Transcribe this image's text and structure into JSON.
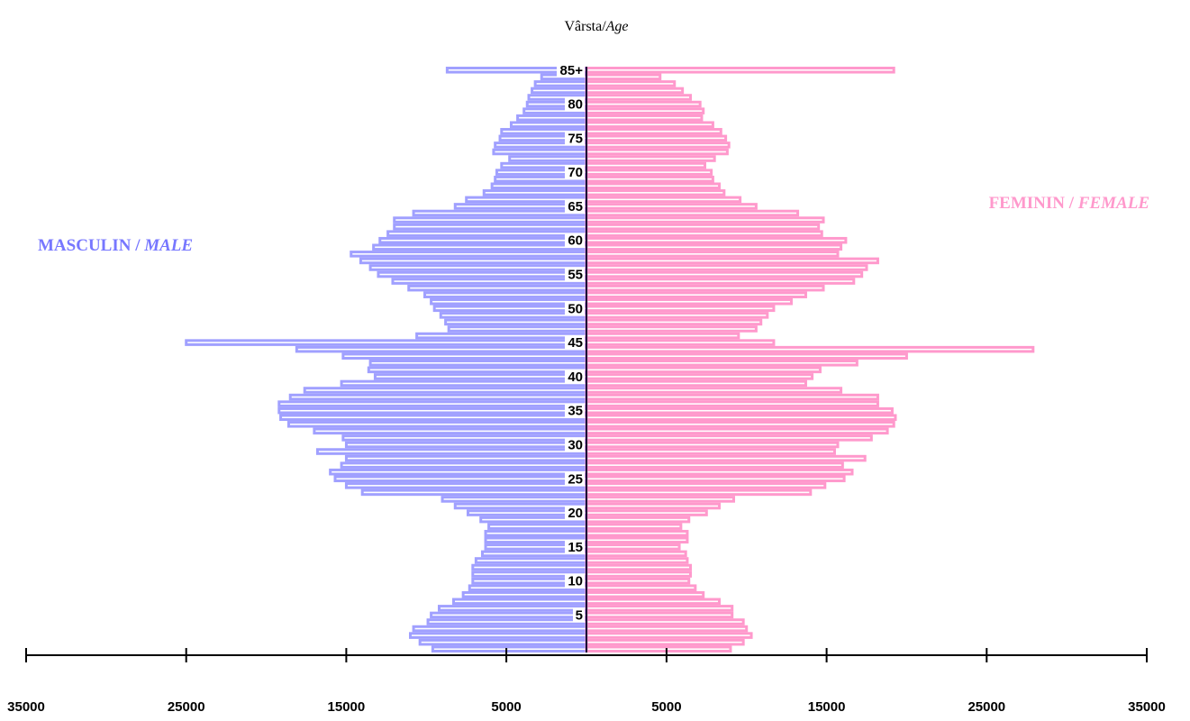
{
  "chart_data": {
    "type": "bar",
    "orientation": "horizontal",
    "title_plain": "Vârsta/",
    "title_italic": "Age",
    "male_label_plain": "MASCULIN / ",
    "male_label_italic": "MALE",
    "female_label_plain": "FEMININ / ",
    "female_label_italic": "FEMALE",
    "categories": [
      "0",
      "1",
      "2",
      "3",
      "4",
      "5",
      "6",
      "7",
      "8",
      "9",
      "10",
      "11",
      "12",
      "13",
      "14",
      "15",
      "16",
      "17",
      "18",
      "19",
      "20",
      "21",
      "22",
      "23",
      "24",
      "25",
      "26",
      "27",
      "28",
      "29",
      "30",
      "31",
      "32",
      "33",
      "34",
      "35",
      "36",
      "37",
      "38",
      "39",
      "40",
      "41",
      "42",
      "43",
      "44",
      "45",
      "46",
      "47",
      "48",
      "49",
      "50",
      "51",
      "52",
      "53",
      "54",
      "55",
      "56",
      "57",
      "58",
      "59",
      "60",
      "61",
      "62",
      "63",
      "64",
      "65",
      "66",
      "67",
      "68",
      "69",
      "70",
      "71",
      "72",
      "73",
      "74",
      "75",
      "76",
      "77",
      "78",
      "79",
      "80",
      "81",
      "82",
      "83",
      "84",
      "85+"
    ],
    "age_tick_labels": [
      "5",
      "10",
      "15",
      "20",
      "25",
      "30",
      "35",
      "40",
      "45",
      "50",
      "55",
      "60",
      "65",
      "70",
      "75",
      "80",
      "85+"
    ],
    "age_tick_indices": [
      5,
      10,
      15,
      20,
      25,
      30,
      35,
      40,
      45,
      50,
      55,
      60,
      65,
      70,
      75,
      80,
      85
    ],
    "series": [
      {
        "name": "MASCULIN / MALE",
        "values": [
          9600,
          10400,
          11000,
          10800,
          9900,
          9700,
          9200,
          8300,
          7700,
          7300,
          7100,
          7100,
          7100,
          6900,
          6500,
          6300,
          6300,
          6300,
          6100,
          6600,
          7400,
          8200,
          9000,
          14000,
          15000,
          15700,
          16000,
          15300,
          15000,
          16800,
          15000,
          15200,
          17000,
          18600,
          19100,
          19200,
          19200,
          18500,
          17600,
          15300,
          13200,
          13600,
          13500,
          15200,
          18100,
          25000,
          10600,
          8600,
          8800,
          9100,
          9500,
          9700,
          10100,
          11100,
          12100,
          13000,
          13500,
          14100,
          14700,
          13300,
          12900,
          12400,
          12000,
          12000,
          10800,
          8200,
          7500,
          6400,
          5900,
          5700,
          5600,
          5300,
          4800,
          5800,
          5700,
          5400,
          5300,
          4700,
          4300,
          3900,
          3700,
          3600,
          3400,
          3200,
          2800,
          8700
        ],
        "color": "#a0a0ff"
      },
      {
        "name": "FEMININ / FEMALE",
        "values": [
          9000,
          9800,
          10300,
          10000,
          9800,
          9100,
          9100,
          8300,
          7300,
          6800,
          6400,
          6500,
          6500,
          6300,
          6200,
          5800,
          6300,
          6300,
          5900,
          6400,
          7500,
          8300,
          9200,
          14000,
          14900,
          16100,
          16600,
          16000,
          17400,
          15500,
          15700,
          17800,
          18800,
          19200,
          19300,
          19100,
          18200,
          18200,
          15900,
          13700,
          14100,
          14600,
          16900,
          20000,
          27900,
          11700,
          9500,
          10600,
          10900,
          11300,
          11700,
          12800,
          13700,
          14800,
          16700,
          17200,
          17500,
          18200,
          15700,
          15900,
          16200,
          14700,
          14500,
          14800,
          13200,
          10600,
          9600,
          8600,
          8300,
          7900,
          7800,
          7400,
          8000,
          8800,
          8900,
          8700,
          8400,
          7900,
          7200,
          7300,
          7100,
          6500,
          6000,
          5500,
          4600,
          19200
        ],
        "color": "#ff99cc"
      }
    ],
    "x_tick_labels_left": [
      "35000",
      "25000",
      "15000",
      "5000"
    ],
    "x_tick_labels_right": [
      "5000",
      "15000",
      "25000",
      "35000"
    ],
    "xlim": [
      -35000,
      35000
    ],
    "grid": false,
    "legend": "none",
    "center_line_color": "#000033"
  }
}
